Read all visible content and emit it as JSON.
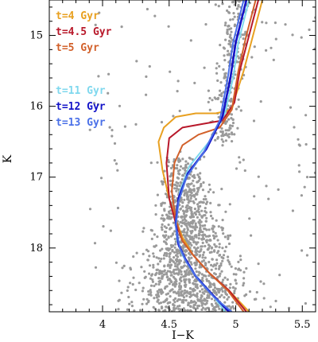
{
  "chart_data": {
    "type": "scatter",
    "title": "",
    "xlabel": "I−K",
    "ylabel": "K",
    "xlim": [
      3.6,
      5.6
    ],
    "ylim": [
      18.9,
      14.5
    ],
    "y_inverted": true,
    "x_ticks": [
      4,
      4.5,
      5,
      5.5
    ],
    "x_tick_labels": [
      "4",
      "4.5",
      "5",
      "5.5"
    ],
    "y_ticks": [
      15,
      16,
      17,
      18
    ],
    "y_tick_labels": [
      "15",
      "16",
      "17",
      "18"
    ],
    "grid": false,
    "legend_position": "top-left",
    "colors": {
      "scatter": "#9a9a9a",
      "t4": "#e8a020",
      "t45": "#b8182a",
      "t5": "#d2602a",
      "t11": "#7fd8ee",
      "t12": "#1212c8",
      "t13": "#4a70e8"
    },
    "scatter_summary": {
      "clusters": [
        {
          "region": "main sequence",
          "x_center": 4.62,
          "y_range": [
            16.7,
            18.9
          ],
          "density": "high"
        },
        {
          "region": "giant branch",
          "x_range": [
            4.8,
            5.2
          ],
          "y_range": [
            14.5,
            16.5
          ],
          "density": "medium"
        },
        {
          "region": "field",
          "x_range": [
            3.9,
            5.6
          ],
          "y_range": [
            14.6,
            18.9
          ],
          "density": "low"
        }
      ]
    },
    "series": [
      {
        "name": "t=4 Gyr",
        "color_key": "t4",
        "x": [
          5.2,
          5.13,
          5.06,
          5.0,
          4.97,
          4.85,
          4.7,
          4.55,
          4.46,
          4.42,
          4.45,
          4.5,
          4.55,
          4.6,
          4.68,
          4.8,
          4.95,
          5.1
        ],
        "y": [
          14.5,
          15.0,
          15.5,
          15.85,
          16.05,
          16.1,
          16.1,
          16.15,
          16.3,
          16.5,
          16.9,
          17.3,
          17.6,
          17.85,
          18.1,
          18.35,
          18.6,
          18.9
        ]
      },
      {
        "name": "t=4.5 Gyr",
        "color_key": "t45",
        "x": [
          5.17,
          5.1,
          5.03,
          4.99,
          4.9,
          4.75,
          4.6,
          4.5,
          4.48,
          4.5,
          4.55,
          4.6,
          4.68,
          4.8,
          4.95,
          5.08
        ],
        "y": [
          14.5,
          15.0,
          15.5,
          15.95,
          16.2,
          16.25,
          16.3,
          16.45,
          16.8,
          17.3,
          17.65,
          17.9,
          18.1,
          18.35,
          18.6,
          18.9
        ]
      },
      {
        "name": "t=5 Gyr",
        "color_key": "t5",
        "x": [
          5.15,
          5.08,
          5.02,
          4.97,
          4.88,
          4.72,
          4.6,
          4.54,
          4.52,
          4.55,
          4.6,
          4.68,
          4.8,
          4.94,
          5.06
        ],
        "y": [
          14.5,
          15.0,
          15.5,
          16.05,
          16.3,
          16.4,
          16.55,
          16.8,
          17.2,
          17.6,
          17.9,
          18.1,
          18.35,
          18.6,
          18.9
        ]
      },
      {
        "name": "t=11 Gyr",
        "color_key": "t11",
        "x": [
          5.1,
          5.02,
          4.98,
          4.92,
          4.8,
          4.65,
          4.58,
          4.55,
          4.56,
          4.6,
          4.68,
          4.8,
          4.92
        ],
        "y": [
          14.5,
          15.1,
          15.6,
          16.1,
          16.5,
          16.85,
          17.2,
          17.6,
          17.9,
          18.1,
          18.35,
          18.6,
          18.9
        ]
      },
      {
        "name": "t=12 Gyr",
        "color_key": "t12",
        "x": [
          5.08,
          5.0,
          4.96,
          4.9,
          4.78,
          4.64,
          4.57,
          4.55,
          4.57,
          4.62,
          4.7,
          4.82,
          4.95
        ],
        "y": [
          14.5,
          15.1,
          15.6,
          16.15,
          16.6,
          16.95,
          17.3,
          17.65,
          17.95,
          18.15,
          18.4,
          18.65,
          18.9
        ]
      },
      {
        "name": "t=13 Gyr",
        "color_key": "t13",
        "x": [
          5.06,
          4.98,
          4.94,
          4.88,
          4.76,
          4.63,
          4.57,
          4.55,
          4.58,
          4.63,
          4.72,
          4.84,
          4.97
        ],
        "y": [
          14.5,
          15.1,
          15.6,
          16.2,
          16.65,
          17.0,
          17.35,
          17.7,
          18.0,
          18.2,
          18.45,
          18.7,
          18.9
        ]
      }
    ]
  }
}
